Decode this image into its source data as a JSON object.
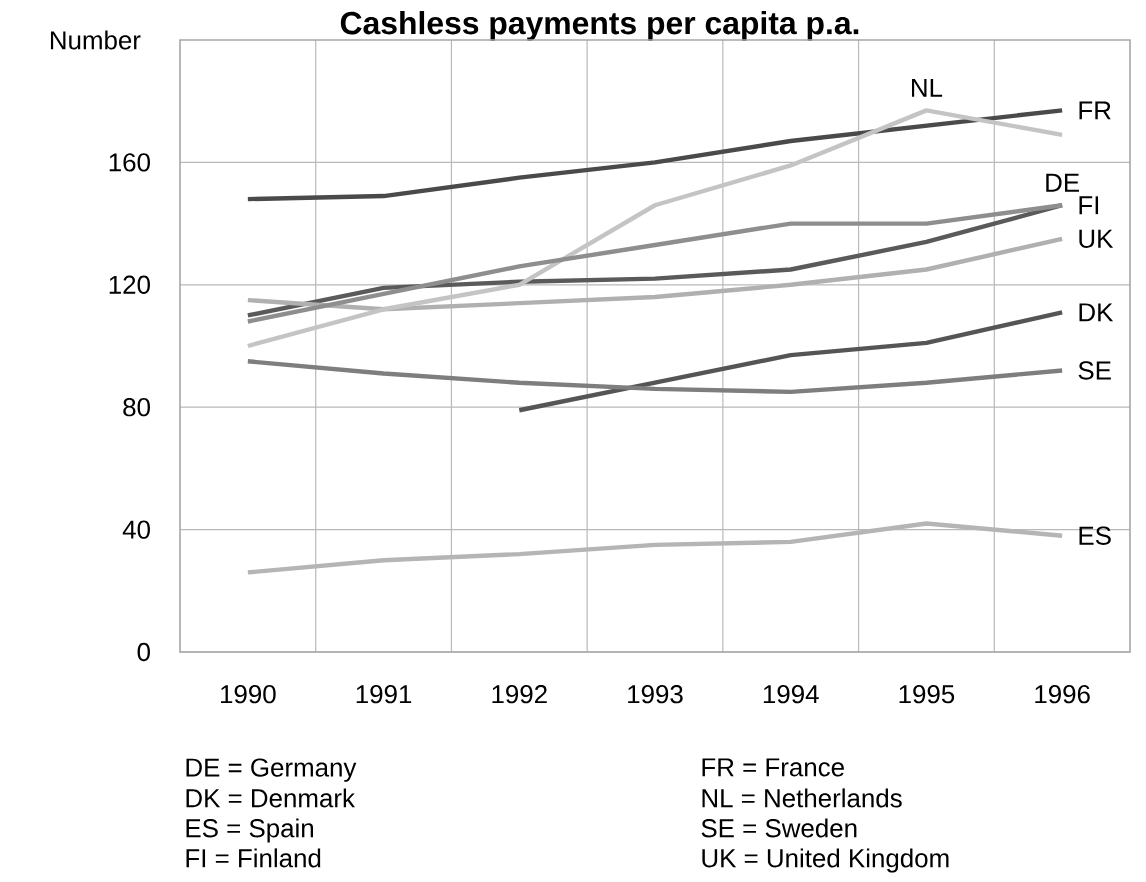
{
  "chart_data": {
    "type": "line",
    "title": "Cashless payments per capita p.a.",
    "ylabel": "Number",
    "categories": [
      "1990",
      "1991",
      "1992",
      "1993",
      "1994",
      "1995",
      "1996"
    ],
    "series": [
      {
        "name": "FR",
        "color": "#4a4a4a",
        "values": [
          148,
          149,
          155,
          160,
          167,
          172,
          177
        ]
      },
      {
        "name": "FI",
        "color": "#5a5a5a",
        "values": [
          110,
          119,
          121,
          122,
          125,
          134,
          146
        ]
      },
      {
        "name": "UK",
        "color": "#b0b0b0",
        "values": [
          115,
          112,
          114,
          116,
          120,
          125,
          135
        ]
      },
      {
        "name": "DK",
        "color": "#555555",
        "values": [
          null,
          null,
          79,
          88,
          97,
          101,
          111
        ]
      },
      {
        "name": "SE",
        "color": "#7e7e7e",
        "values": [
          95,
          91,
          88,
          86,
          85,
          88,
          92
        ]
      },
      {
        "name": "ES",
        "color": "#b5b5b5",
        "values": [
          26,
          30,
          32,
          35,
          36,
          42,
          38
        ]
      },
      {
        "name": "NL",
        "color": "#c4c4c4",
        "values": [
          100,
          112,
          120,
          146,
          159,
          177,
          169
        ]
      },
      {
        "name": "DE",
        "color": "#8e8e8e",
        "values": [
          108,
          117,
          126,
          133,
          140,
          140,
          146
        ]
      }
    ],
    "ylim": [
      0,
      200
    ],
    "yticks": [
      0,
      40,
      80,
      120,
      160
    ],
    "grid": true,
    "annotations": [
      "DE = Germany",
      "DK = Denmark",
      "ES = Spain",
      "FI  = Finland",
      "FR = France",
      "NL = Netherlands",
      "SE = Sweden",
      "UK = United Kingdom"
    ]
  }
}
